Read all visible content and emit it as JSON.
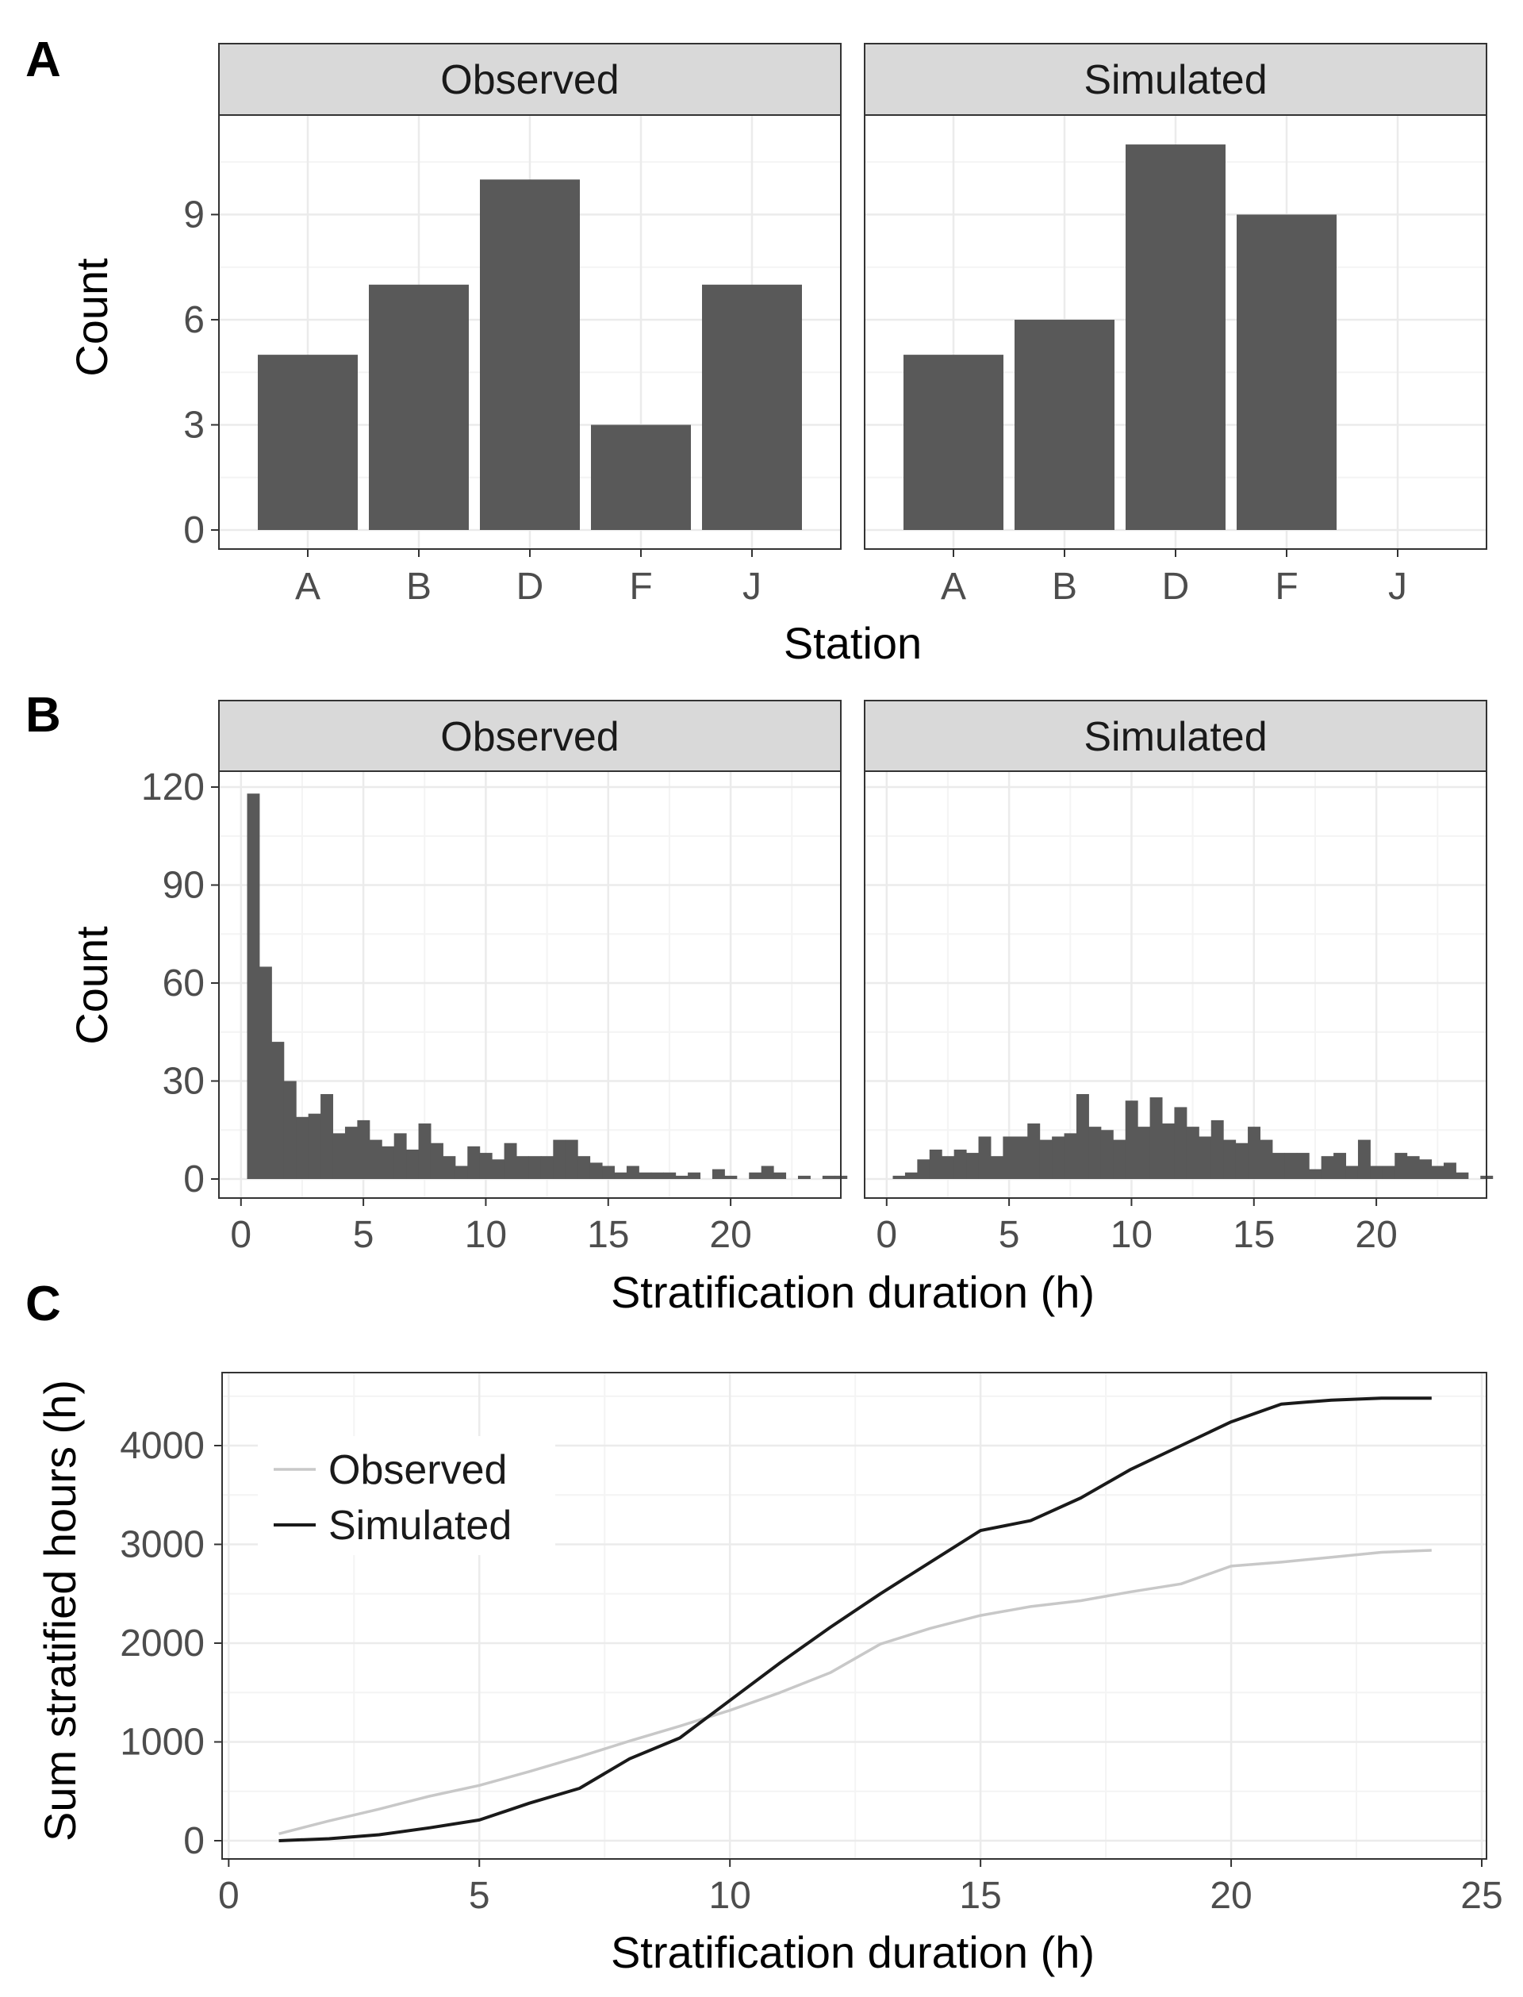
{
  "panels": [
    {
      "letter": "A"
    },
    {
      "letter": "B"
    },
    {
      "letter": "C"
    }
  ],
  "colors": {
    "bar": "#595959",
    "grid_major": "#ebebeb",
    "grid_minor": "#f4f4f4",
    "strip_bg": "#d9d9d9",
    "frame": "#333333",
    "observed_line": "#c8c8c8",
    "simulated_line": "#1a1a1a"
  },
  "chart_data": [
    {
      "panel": "A",
      "type": "bar",
      "facets": [
        "Observed",
        "Simulated"
      ],
      "categories": [
        "A",
        "B",
        "D",
        "F",
        "J"
      ],
      "series": [
        {
          "name": "Observed",
          "values": [
            5,
            7,
            10,
            3,
            7
          ]
        },
        {
          "name": "Simulated",
          "values": [
            5,
            6,
            11,
            9,
            0
          ]
        }
      ],
      "xlabel": "Station",
      "ylabel": "Count",
      "yticks": [
        0,
        3,
        6,
        9
      ],
      "ylim": [
        0,
        11.5
      ],
      "grid": true
    },
    {
      "panel": "B",
      "type": "bar",
      "facets": [
        "Observed",
        "Simulated"
      ],
      "bin_width": 0.5,
      "bin_start": 0.25,
      "series": [
        {
          "name": "Observed",
          "values": [
            118,
            65,
            42,
            30,
            19,
            20,
            26,
            14,
            16,
            18,
            12,
            10,
            14,
            9,
            17,
            11,
            7,
            4,
            10,
            8,
            6,
            11,
            7,
            7,
            7,
            12,
            12,
            7,
            5,
            4,
            2,
            4,
            2,
            2,
            2,
            1,
            2,
            0,
            3,
            1,
            0,
            2,
            4,
            2,
            0,
            1,
            0,
            1,
            1,
            0
          ]
        },
        {
          "name": "Simulated",
          "values": [
            1,
            2,
            6,
            9,
            7,
            9,
            8,
            13,
            7,
            13,
            13,
            17,
            12,
            13,
            14,
            26,
            16,
            15,
            12,
            24,
            16,
            25,
            17,
            22,
            16,
            13,
            18,
            12,
            11,
            16,
            12,
            8,
            8,
            8,
            3,
            7,
            8,
            4,
            12,
            4,
            4,
            8,
            7,
            6,
            4,
            5,
            2,
            0,
            1
          ]
        }
      ],
      "xlabel": "Stratification duration (h)",
      "ylabel": "Count",
      "xticks": [
        0,
        5,
        10,
        15,
        20
      ],
      "yticks": [
        0,
        30,
        60,
        90,
        120
      ],
      "xlim": [
        -0.9,
        24.5
      ],
      "ylim": [
        0,
        120
      ],
      "grid": true
    },
    {
      "panel": "C",
      "type": "line",
      "series": [
        {
          "name": "Observed",
          "x": [
            1,
            2,
            3,
            4,
            5,
            6,
            7,
            8,
            9,
            10,
            11,
            12,
            13,
            14,
            15,
            16,
            17,
            18,
            19,
            20,
            21,
            22,
            23,
            24
          ],
          "values": [
            70,
            200,
            320,
            450,
            560,
            700,
            850,
            1010,
            1160,
            1320,
            1500,
            1700,
            1990,
            2150,
            2280,
            2370,
            2430,
            2520,
            2600,
            2780,
            2820,
            2870,
            2920,
            2940
          ]
        },
        {
          "name": "Simulated",
          "x": [
            1,
            2,
            3,
            4,
            5,
            6,
            7,
            8,
            9,
            10,
            11,
            12,
            13,
            14,
            15,
            16,
            17,
            18,
            19,
            20,
            21,
            22,
            23,
            24
          ],
          "values": [
            0,
            20,
            60,
            130,
            210,
            380,
            530,
            830,
            1040,
            1420,
            1800,
            2160,
            2500,
            2820,
            3140,
            3240,
            3470,
            3760,
            4000,
            4240,
            4420,
            4460,
            4480,
            4480
          ]
        }
      ],
      "xlabel": "Stratification duration (h)",
      "ylabel": "Sum stratified hours (h)",
      "xticks": [
        0,
        5,
        10,
        15,
        20,
        25
      ],
      "yticks": [
        0,
        1000,
        2000,
        3000,
        4000
      ],
      "xlim": [
        -0.1,
        25
      ],
      "ylim": [
        -100,
        4800
      ],
      "legend_position": "top-left",
      "grid": true
    }
  ]
}
